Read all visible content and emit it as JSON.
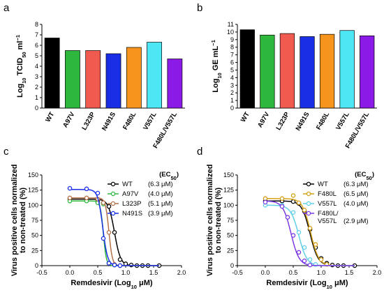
{
  "panels": {
    "a": "a",
    "b": "b",
    "c": "c",
    "d": "d"
  },
  "chart_data": [
    {
      "panel": "a",
      "type": "bar",
      "categories": [
        "WT",
        "A97V",
        "L323P",
        "N491S",
        "F480L",
        "V557L",
        "F480L/V557L"
      ],
      "values": [
        6.7,
        5.5,
        5.5,
        5.2,
        5.8,
        6.3,
        4.7
      ],
      "colors": [
        "#000000",
        "#2db83d",
        "#f05a4f",
        "#1a2ee6",
        "#f7941d",
        "#4de6f5",
        "#8b1ae6"
      ],
      "ylabel_main": "Log",
      "ylabel_sub": "10",
      "ylabel_rest": " TCID",
      "ylabel_sub2": "50",
      "ylabel_unit": " ml",
      "ylabel_sup": "−1",
      "ylim": [
        0,
        8
      ],
      "yticks": [
        "0",
        "1",
        "2",
        "3",
        "4",
        "5",
        "6",
        "7",
        "8"
      ]
    },
    {
      "panel": "b",
      "type": "bar",
      "categories": [
        "WT",
        "A97V",
        "L323P",
        "N491S",
        "F480L",
        "V557L",
        "F480L/V557L"
      ],
      "values": [
        10.3,
        9.6,
        9.8,
        9.4,
        9.7,
        10.2,
        9.5
      ],
      "colors": [
        "#000000",
        "#2db83d",
        "#f05a4f",
        "#1a2ee6",
        "#f7941d",
        "#4de6f5",
        "#8b1ae6"
      ],
      "ylabel_main": "Log",
      "ylabel_sub": "10",
      "ylabel_rest": " GE mL",
      "ylabel_sup": "−1",
      "ylim": [
        0,
        11
      ],
      "yticks": [
        "0",
        "1",
        "2",
        "3",
        "4",
        "5",
        "6",
        "7",
        "8",
        "9",
        "10",
        "11"
      ]
    },
    {
      "panel": "c",
      "type": "scatter",
      "xlabel_main": "Remdesivir (Log",
      "xlabel_sub": "10",
      "xlabel_rest": " μM)",
      "ylabel_line1": "Virus positive cells normalized",
      "ylabel_line2": "to non-treated (%)",
      "xlim": [
        -0.5,
        2.0
      ],
      "ylim": [
        0,
        150
      ],
      "xticks": [
        "-0.5",
        "0.0",
        "0.5",
        "1.0",
        "1.5",
        "2.0"
      ],
      "yticks": [
        "0",
        "25",
        "50",
        "75",
        "100",
        "125",
        "150"
      ],
      "legend_title": "(EC",
      "legend_title_sub": "50",
      "legend_title_end": ")",
      "series": [
        {
          "name": "WT",
          "ec50": "(6.3 μM)",
          "color": "#000000",
          "top": 110,
          "logec": 0.8,
          "hill": 8,
          "x": [
            0.0,
            0.3,
            0.5,
            0.6,
            0.7,
            0.8,
            0.9,
            1.0,
            1.1,
            1.2,
            1.3,
            1.4,
            1.6
          ],
          "y": [
            110,
            110,
            108,
            104,
            98,
            55,
            10,
            3,
            1,
            0,
            0,
            0,
            0
          ]
        },
        {
          "name": "A97V",
          "ec50": "(4.0 μM)",
          "color": "#2db83d",
          "top": 107,
          "logec": 0.6,
          "hill": 16,
          "x": [
            0.0,
            0.3,
            0.5,
            0.6,
            0.7,
            0.8,
            0.9
          ],
          "y": [
            107,
            107,
            104,
            102,
            4,
            1,
            0
          ]
        },
        {
          "name": "L323P",
          "ec50": "(5.1 μM)",
          "color": "#b5714a",
          "top": 112,
          "logec": 0.7,
          "hill": 14,
          "x": [
            0.0,
            0.3,
            0.5,
            0.6,
            0.7,
            0.8,
            0.9
          ],
          "y": [
            112,
            112,
            110,
            104,
            55,
            2,
            0
          ]
        },
        {
          "name": "N491S",
          "ec50": "(3.9 μM)",
          "color": "#1a2ee6",
          "top": 126,
          "logec": 0.59,
          "hill": 10,
          "x": [
            0.0,
            0.3,
            0.5,
            0.6,
            0.7,
            0.8,
            0.9
          ],
          "y": [
            128,
            127,
            120,
            45,
            4,
            1,
            0
          ]
        }
      ]
    },
    {
      "panel": "d",
      "type": "scatter",
      "xlabel_main": "Remdesivir (Log",
      "xlabel_sub": "10",
      "xlabel_rest": " μM)",
      "ylabel_line1": "Virus positive cells normalized",
      "ylabel_line2": "to non-treated (%)",
      "xlim": [
        -0.5,
        2.0
      ],
      "ylim": [
        0,
        150
      ],
      "xticks": [
        "-0.5",
        "0.0",
        "0.5",
        "1.0",
        "1.5",
        "2.0"
      ],
      "yticks": [
        "0",
        "25",
        "50",
        "75",
        "100",
        "125",
        "150"
      ],
      "legend_title": "(EC",
      "legend_title_sub": "50",
      "legend_title_end": ")",
      "series": [
        {
          "name": "WT",
          "ec50": "(6.3 μM)",
          "color": "#000000",
          "top": 107,
          "logec": 0.8,
          "hill": 6,
          "x": [
            0.0,
            0.3,
            0.5,
            0.6,
            0.7,
            0.8,
            0.9,
            1.0,
            1.1,
            1.2,
            1.3,
            1.4,
            1.6
          ],
          "y": [
            107,
            107,
            106,
            103,
            90,
            60,
            30,
            12,
            4,
            1,
            0,
            0,
            0
          ]
        },
        {
          "name": "F480L",
          "ec50": "(6.5 μM)",
          "color": "#d4a017",
          "top": 111,
          "logec": 0.81,
          "hill": 6,
          "x": [
            0.0,
            0.3,
            0.5,
            0.6,
            0.7,
            0.8,
            0.9,
            1.0,
            1.1
          ],
          "y": [
            111,
            111,
            116,
            104,
            92,
            62,
            35,
            10,
            2
          ]
        },
        {
          "name": "V557L",
          "ec50": "(4.0 μM)",
          "color": "#5fd0e8",
          "top": 100,
          "logec": 0.6,
          "hill": 6,
          "x": [
            0.0,
            0.3,
            0.5,
            0.6,
            0.7,
            0.8,
            0.9
          ],
          "y": [
            100,
            100,
            88,
            55,
            30,
            10,
            2
          ]
        },
        {
          "name": "F480L/\nV557L",
          "ec50": "(2.9 μM)",
          "color": "#7c3ae6",
          "top": 107,
          "logec": 0.46,
          "hill": 6,
          "x": [
            0.0,
            0.3,
            0.4,
            0.5,
            0.6,
            0.7,
            0.8
          ],
          "y": [
            105,
            98,
            80,
            50,
            22,
            8,
            1
          ]
        }
      ]
    }
  ]
}
